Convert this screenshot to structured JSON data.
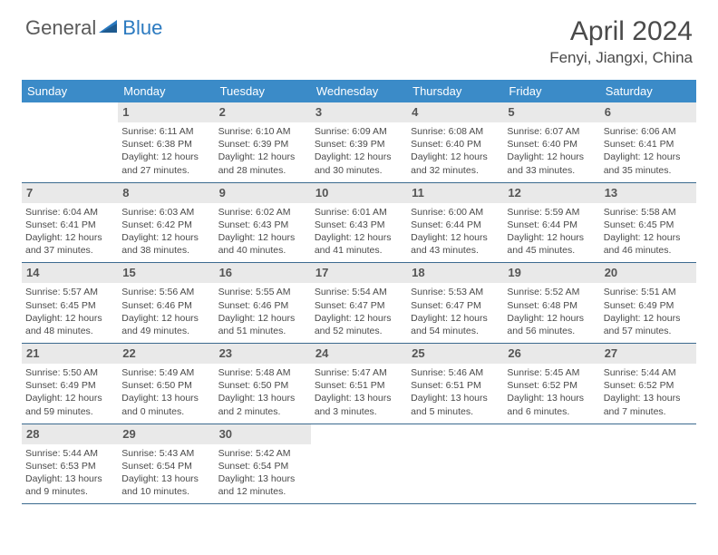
{
  "logo": {
    "part1": "General",
    "part2": "Blue"
  },
  "title": "April 2024",
  "location": "Fenyi, Jiangxi, China",
  "colors": {
    "header_bg": "#3b8bc8",
    "header_text": "#ffffff",
    "daynum_bg": "#e9e9e9",
    "row_border": "#3b6a8f",
    "body_text": "#4a4a4a",
    "logo_blue": "#2b7ac0"
  },
  "day_names": [
    "Sunday",
    "Monday",
    "Tuesday",
    "Wednesday",
    "Thursday",
    "Friday",
    "Saturday"
  ],
  "weeks": [
    [
      {
        "empty": true
      },
      {
        "n": "1",
        "sr": "Sunrise: 6:11 AM",
        "ss": "Sunset: 6:38 PM",
        "d1": "Daylight: 12 hours",
        "d2": "and 27 minutes."
      },
      {
        "n": "2",
        "sr": "Sunrise: 6:10 AM",
        "ss": "Sunset: 6:39 PM",
        "d1": "Daylight: 12 hours",
        "d2": "and 28 minutes."
      },
      {
        "n": "3",
        "sr": "Sunrise: 6:09 AM",
        "ss": "Sunset: 6:39 PM",
        "d1": "Daylight: 12 hours",
        "d2": "and 30 minutes."
      },
      {
        "n": "4",
        "sr": "Sunrise: 6:08 AM",
        "ss": "Sunset: 6:40 PM",
        "d1": "Daylight: 12 hours",
        "d2": "and 32 minutes."
      },
      {
        "n": "5",
        "sr": "Sunrise: 6:07 AM",
        "ss": "Sunset: 6:40 PM",
        "d1": "Daylight: 12 hours",
        "d2": "and 33 minutes."
      },
      {
        "n": "6",
        "sr": "Sunrise: 6:06 AM",
        "ss": "Sunset: 6:41 PM",
        "d1": "Daylight: 12 hours",
        "d2": "and 35 minutes."
      }
    ],
    [
      {
        "n": "7",
        "sr": "Sunrise: 6:04 AM",
        "ss": "Sunset: 6:41 PM",
        "d1": "Daylight: 12 hours",
        "d2": "and 37 minutes."
      },
      {
        "n": "8",
        "sr": "Sunrise: 6:03 AM",
        "ss": "Sunset: 6:42 PM",
        "d1": "Daylight: 12 hours",
        "d2": "and 38 minutes."
      },
      {
        "n": "9",
        "sr": "Sunrise: 6:02 AM",
        "ss": "Sunset: 6:43 PM",
        "d1": "Daylight: 12 hours",
        "d2": "and 40 minutes."
      },
      {
        "n": "10",
        "sr": "Sunrise: 6:01 AM",
        "ss": "Sunset: 6:43 PM",
        "d1": "Daylight: 12 hours",
        "d2": "and 41 minutes."
      },
      {
        "n": "11",
        "sr": "Sunrise: 6:00 AM",
        "ss": "Sunset: 6:44 PM",
        "d1": "Daylight: 12 hours",
        "d2": "and 43 minutes."
      },
      {
        "n": "12",
        "sr": "Sunrise: 5:59 AM",
        "ss": "Sunset: 6:44 PM",
        "d1": "Daylight: 12 hours",
        "d2": "and 45 minutes."
      },
      {
        "n": "13",
        "sr": "Sunrise: 5:58 AM",
        "ss": "Sunset: 6:45 PM",
        "d1": "Daylight: 12 hours",
        "d2": "and 46 minutes."
      }
    ],
    [
      {
        "n": "14",
        "sr": "Sunrise: 5:57 AM",
        "ss": "Sunset: 6:45 PM",
        "d1": "Daylight: 12 hours",
        "d2": "and 48 minutes."
      },
      {
        "n": "15",
        "sr": "Sunrise: 5:56 AM",
        "ss": "Sunset: 6:46 PM",
        "d1": "Daylight: 12 hours",
        "d2": "and 49 minutes."
      },
      {
        "n": "16",
        "sr": "Sunrise: 5:55 AM",
        "ss": "Sunset: 6:46 PM",
        "d1": "Daylight: 12 hours",
        "d2": "and 51 minutes."
      },
      {
        "n": "17",
        "sr": "Sunrise: 5:54 AM",
        "ss": "Sunset: 6:47 PM",
        "d1": "Daylight: 12 hours",
        "d2": "and 52 minutes."
      },
      {
        "n": "18",
        "sr": "Sunrise: 5:53 AM",
        "ss": "Sunset: 6:47 PM",
        "d1": "Daylight: 12 hours",
        "d2": "and 54 minutes."
      },
      {
        "n": "19",
        "sr": "Sunrise: 5:52 AM",
        "ss": "Sunset: 6:48 PM",
        "d1": "Daylight: 12 hours",
        "d2": "and 56 minutes."
      },
      {
        "n": "20",
        "sr": "Sunrise: 5:51 AM",
        "ss": "Sunset: 6:49 PM",
        "d1": "Daylight: 12 hours",
        "d2": "and 57 minutes."
      }
    ],
    [
      {
        "n": "21",
        "sr": "Sunrise: 5:50 AM",
        "ss": "Sunset: 6:49 PM",
        "d1": "Daylight: 12 hours",
        "d2": "and 59 minutes."
      },
      {
        "n": "22",
        "sr": "Sunrise: 5:49 AM",
        "ss": "Sunset: 6:50 PM",
        "d1": "Daylight: 13 hours",
        "d2": "and 0 minutes."
      },
      {
        "n": "23",
        "sr": "Sunrise: 5:48 AM",
        "ss": "Sunset: 6:50 PM",
        "d1": "Daylight: 13 hours",
        "d2": "and 2 minutes."
      },
      {
        "n": "24",
        "sr": "Sunrise: 5:47 AM",
        "ss": "Sunset: 6:51 PM",
        "d1": "Daylight: 13 hours",
        "d2": "and 3 minutes."
      },
      {
        "n": "25",
        "sr": "Sunrise: 5:46 AM",
        "ss": "Sunset: 6:51 PM",
        "d1": "Daylight: 13 hours",
        "d2": "and 5 minutes."
      },
      {
        "n": "26",
        "sr": "Sunrise: 5:45 AM",
        "ss": "Sunset: 6:52 PM",
        "d1": "Daylight: 13 hours",
        "d2": "and 6 minutes."
      },
      {
        "n": "27",
        "sr": "Sunrise: 5:44 AM",
        "ss": "Sunset: 6:52 PM",
        "d1": "Daylight: 13 hours",
        "d2": "and 7 minutes."
      }
    ],
    [
      {
        "n": "28",
        "sr": "Sunrise: 5:44 AM",
        "ss": "Sunset: 6:53 PM",
        "d1": "Daylight: 13 hours",
        "d2": "and 9 minutes."
      },
      {
        "n": "29",
        "sr": "Sunrise: 5:43 AM",
        "ss": "Sunset: 6:54 PM",
        "d1": "Daylight: 13 hours",
        "d2": "and 10 minutes."
      },
      {
        "n": "30",
        "sr": "Sunrise: 5:42 AM",
        "ss": "Sunset: 6:54 PM",
        "d1": "Daylight: 13 hours",
        "d2": "and 12 minutes."
      },
      {
        "empty": true
      },
      {
        "empty": true
      },
      {
        "empty": true
      },
      {
        "empty": true
      }
    ]
  ]
}
